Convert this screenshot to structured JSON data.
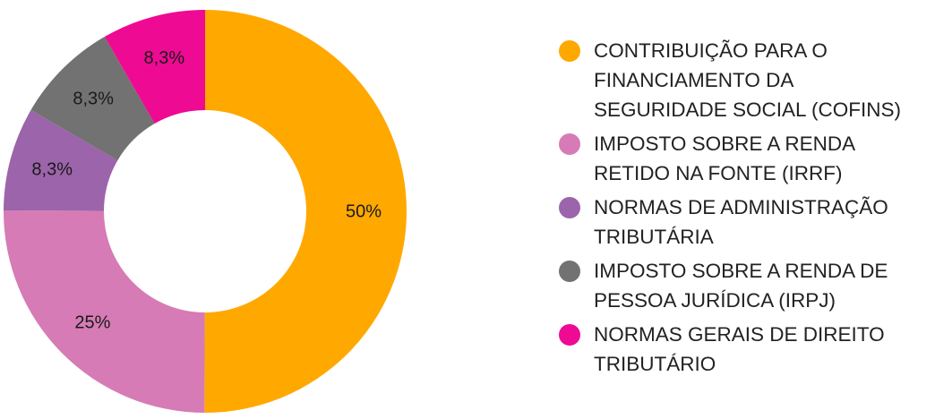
{
  "chart_data": {
    "type": "pie",
    "donut": true,
    "legend_position": "right",
    "slices": [
      {
        "label": "CONTRIBUIÇÃO PARA O FINANCIAMENTO DA SEGURIDADE SOCIAL (COFINS)",
        "value": 50,
        "display": "50%",
        "color": "#FFA800"
      },
      {
        "label": "IMPOSTO SOBRE A RENDA RETIDO NA FONTE (IRRF)",
        "value": 25,
        "display": "25%",
        "color": "#D67BB5"
      },
      {
        "label": "NORMAS DE ADMINISTRAÇÃO TRIBUTÁRIA",
        "value": 8.3,
        "display": "8,3%",
        "color": "#9C64AA"
      },
      {
        "label": "IMPOSTO SOBRE A RENDA DE PESSOA JURÍDICA (IRPJ)",
        "value": 8.3,
        "display": "8,3%",
        "color": "#727272"
      },
      {
        "label": "NORMAS GERAIS DE DIREITO TRIBUTÁRIO",
        "value": 8.3,
        "display": "8,3%",
        "color": "#EE0A93"
      }
    ]
  }
}
